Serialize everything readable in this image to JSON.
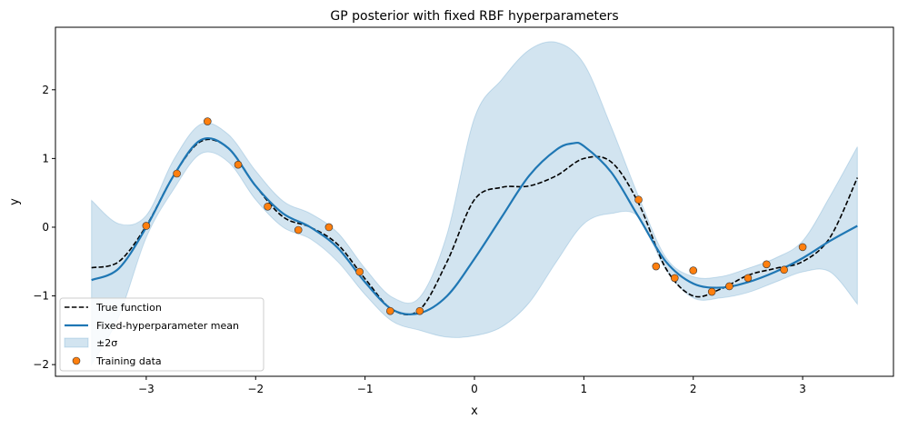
{
  "chart_data": {
    "type": "line",
    "title": "GP posterior with fixed RBF hyperparameters",
    "xlabel": "x",
    "ylabel": "y",
    "xlim": [
      -3.83,
      3.83
    ],
    "ylim": [
      -2.17,
      2.91
    ],
    "xticks": [
      -3,
      -2,
      -1,
      0,
      1,
      2,
      3
    ],
    "yticks": [
      -2,
      -1,
      0,
      1,
      2
    ],
    "grid": false,
    "legend_placement": "lower-left",
    "colors": {
      "mean": "#1f77b4",
      "band": "#1f77b4",
      "true": "#000000",
      "points": "#ff7f0e"
    },
    "series": [
      {
        "name": "True function",
        "style": "dashed",
        "x": [
          -3.5,
          -3.25,
          -3,
          -2.75,
          -2.5,
          -2.25,
          -2,
          -1.75,
          -1.5,
          -1.25,
          -1,
          -0.75,
          -0.5,
          -0.25,
          0,
          0.25,
          0.5,
          0.75,
          1,
          1.25,
          1.5,
          1.75,
          2,
          2.25,
          2.5,
          2.75,
          3,
          3.25,
          3.5
        ],
        "y": [
          -0.59,
          -0.5,
          0.02,
          0.75,
          1.25,
          1.15,
          0.6,
          0.15,
          0.0,
          -0.25,
          -0.75,
          -1.2,
          -1.2,
          -0.5,
          0.4,
          0.58,
          0.6,
          0.75,
          1.0,
          0.95,
          0.35,
          -0.6,
          -1.0,
          -0.9,
          -0.7,
          -0.6,
          -0.5,
          -0.15,
          0.72
        ]
      },
      {
        "name": "Fixed-hyperparameter mean",
        "style": "solid",
        "x": [
          -3.5,
          -3.25,
          -3,
          -2.75,
          -2.5,
          -2.25,
          -2,
          -1.75,
          -1.5,
          -1.25,
          -1,
          -0.75,
          -0.5,
          -0.25,
          0,
          0.25,
          0.5,
          0.75,
          0.9,
          1,
          1.25,
          1.5,
          1.75,
          2,
          2.25,
          2.5,
          2.75,
          3,
          3.25,
          3.5
        ],
        "y": [
          -0.77,
          -0.6,
          0.0,
          0.75,
          1.27,
          1.15,
          0.6,
          0.2,
          0.0,
          -0.3,
          -0.8,
          -1.2,
          -1.25,
          -1.0,
          -0.46,
          0.15,
          0.75,
          1.13,
          1.22,
          1.18,
          0.8,
          0.15,
          -0.5,
          -0.82,
          -0.88,
          -0.8,
          -0.65,
          -0.45,
          -0.2,
          0.02
        ]
      }
    ],
    "band": {
      "name": "±2σ",
      "x": [
        -3.5,
        -3.25,
        -3,
        -2.75,
        -2.5,
        -2.25,
        -2,
        -1.75,
        -1.5,
        -1.25,
        -1,
        -0.75,
        -0.5,
        -0.25,
        0,
        0.25,
        0.5,
        0.75,
        1,
        1.25,
        1.5,
        1.75,
        2,
        2.25,
        2.5,
        2.75,
        3,
        3.25,
        3.5
      ],
      "upper": [
        0.39,
        0.05,
        0.17,
        0.98,
        1.5,
        1.35,
        0.82,
        0.38,
        0.2,
        -0.08,
        -0.6,
        -1.02,
        -1.02,
        -0.1,
        1.59,
        2.15,
        2.58,
        2.69,
        2.38,
        1.46,
        0.45,
        -0.44,
        -0.72,
        -0.72,
        -0.6,
        -0.45,
        -0.2,
        0.45,
        1.17
      ],
      "lower": [
        -2.0,
        -1.3,
        -0.15,
        0.55,
        1.07,
        0.95,
        0.4,
        0.0,
        -0.17,
        -0.5,
        -0.98,
        -1.37,
        -1.5,
        -1.6,
        -1.58,
        -1.45,
        -1.1,
        -0.5,
        0.05,
        0.2,
        0.15,
        -0.62,
        -1.03,
        -1.03,
        -0.95,
        -0.8,
        -0.65,
        -0.65,
        -1.12
      ]
    },
    "training_data": {
      "name": "Training data",
      "x": [
        -3.0,
        -2.72,
        -2.44,
        -2.16,
        -1.89,
        -1.61,
        -1.33,
        -1.05,
        -0.77,
        -0.5,
        1.5,
        1.66,
        1.83,
        2.0,
        2.17,
        2.33,
        2.5,
        2.67,
        2.83,
        3.0
      ],
      "y": [
        0.02,
        0.78,
        1.54,
        0.91,
        0.3,
        -0.04,
        0.0,
        -0.65,
        -1.22,
        -1.22,
        0.4,
        -0.57,
        -0.74,
        -0.63,
        -0.94,
        -0.86,
        -0.74,
        -0.54,
        -0.62,
        -0.29
      ]
    },
    "legend": [
      "True function",
      "Fixed-hyperparameter mean",
      "±2σ",
      "Training data"
    ]
  }
}
